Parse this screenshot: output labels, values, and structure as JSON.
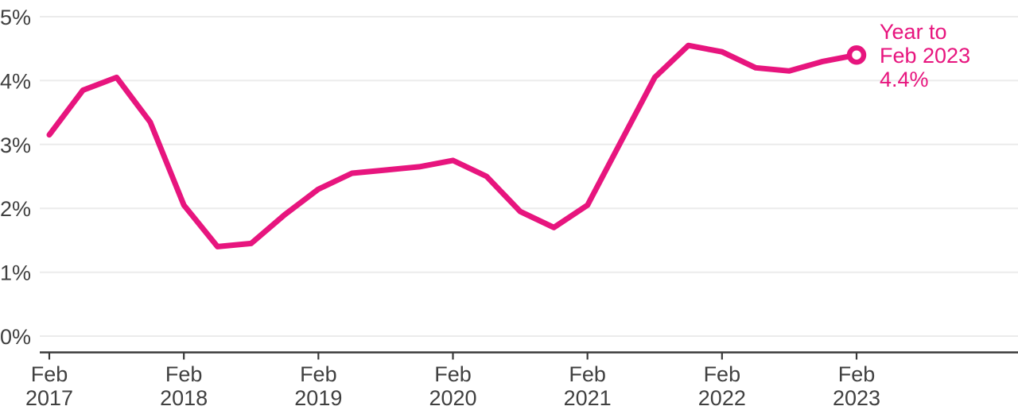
{
  "chart_data": {
    "type": "line",
    "title": "",
    "x": [
      "Feb 2017",
      "May 2017",
      "Aug 2017",
      "Nov 2017",
      "Feb 2018",
      "May 2018",
      "Aug 2018",
      "Nov 2018",
      "Feb 2019",
      "May 2019",
      "Aug 2019",
      "Nov 2019",
      "Feb 2020",
      "May 2020",
      "Aug 2020",
      "Nov 2020",
      "Feb 2021",
      "May 2021",
      "Aug 2021",
      "Nov 2021",
      "Feb 2022",
      "May 2022",
      "Aug 2022",
      "Nov 2022",
      "Feb 2023"
    ],
    "values": [
      3.15,
      3.85,
      4.05,
      3.35,
      2.05,
      1.4,
      1.45,
      1.9,
      2.3,
      2.55,
      2.6,
      2.65,
      2.75,
      2.5,
      1.95,
      1.7,
      2.05,
      3.05,
      4.05,
      4.55,
      4.45,
      4.2,
      4.15,
      4.3,
      4.4
    ],
    "unit": "%",
    "ylim": [
      0,
      5
    ],
    "y_tick_labels": [
      "0%",
      "1%",
      "2%",
      "3%",
      "4%",
      "5%"
    ],
    "x_tick_labels": [
      [
        "Feb",
        "2017"
      ],
      [
        "Feb",
        "2018"
      ],
      [
        "Feb",
        "2019"
      ],
      [
        "Feb",
        "2020"
      ],
      [
        "Feb",
        "2021"
      ],
      [
        "Feb",
        "2022"
      ],
      [
        "Feb",
        "2023"
      ]
    ],
    "grid": "horizontal",
    "legend": "none",
    "annotation": {
      "lines": [
        "Year to",
        "Feb 2023",
        "4.4%"
      ],
      "value": "4.4%"
    },
    "end_marker": "open-circle",
    "colors": {
      "line": "#e7157e",
      "annotation": "#e7157e",
      "axis": "#3a3a3a",
      "labels": "#404040",
      "grid": "#ebebeb",
      "background": "#ffffff"
    }
  }
}
